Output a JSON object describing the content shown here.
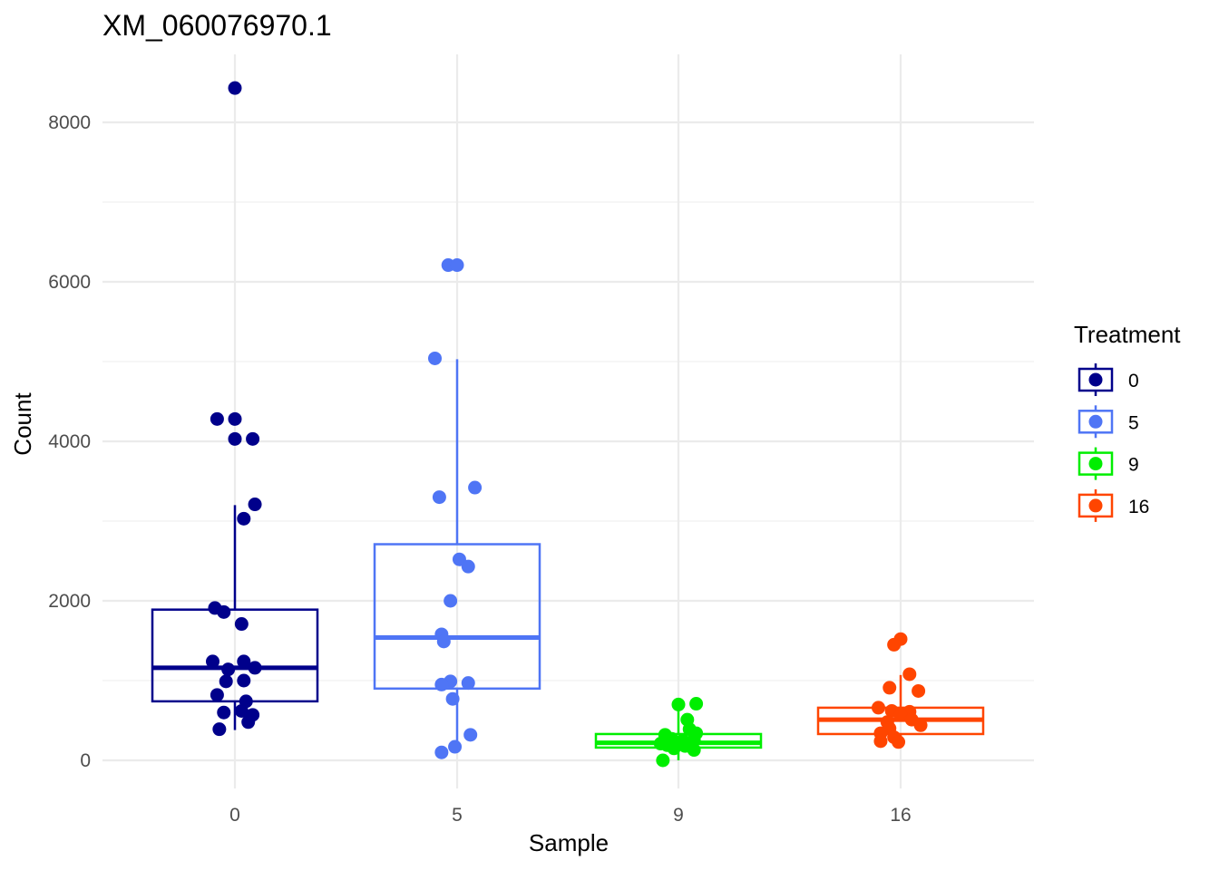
{
  "chart_data": {
    "type": "boxplot",
    "title": "XM_060076970.1",
    "xlabel": "Sample",
    "ylabel": "Count",
    "ylim": [
      -300,
      8850
    ],
    "y_ticks": [
      0,
      2000,
      4000,
      6000,
      8000
    ],
    "y_tick_labels": [
      "0",
      "2000",
      "4000",
      "6000",
      "8000"
    ],
    "grid": true,
    "categories": [
      "0",
      "5",
      "9",
      "16"
    ],
    "legend": {
      "title": "Treatment",
      "position": "right",
      "entries": [
        "0",
        "5",
        "9",
        "16"
      ]
    },
    "series": [
      {
        "name": "0",
        "color": "#00008B",
        "box": {
          "lower_whisker": 380,
          "q1": 740,
          "median": 1160,
          "q3": 1890,
          "upper_whisker": 3200
        },
        "points": [
          {
            "dx": 0.0,
            "y": 8430
          },
          {
            "dx": -0.08,
            "y": 4280
          },
          {
            "dx": 0.0,
            "y": 4280
          },
          {
            "dx": 0.0,
            "y": 4030
          },
          {
            "dx": 0.08,
            "y": 4030
          },
          {
            "dx": 0.09,
            "y": 3210
          },
          {
            "dx": 0.04,
            "y": 3030
          },
          {
            "dx": -0.09,
            "y": 1910
          },
          {
            "dx": -0.05,
            "y": 1860
          },
          {
            "dx": 0.03,
            "y": 1710
          },
          {
            "dx": -0.1,
            "y": 1240
          },
          {
            "dx": 0.04,
            "y": 1240
          },
          {
            "dx": -0.03,
            "y": 1140
          },
          {
            "dx": 0.09,
            "y": 1160
          },
          {
            "dx": -0.04,
            "y": 990
          },
          {
            "dx": 0.04,
            "y": 1000
          },
          {
            "dx": -0.08,
            "y": 820
          },
          {
            "dx": 0.05,
            "y": 740
          },
          {
            "dx": 0.03,
            "y": 620
          },
          {
            "dx": -0.05,
            "y": 600
          },
          {
            "dx": 0.08,
            "y": 570
          },
          {
            "dx": 0.06,
            "y": 480
          },
          {
            "dx": -0.07,
            "y": 390
          }
        ]
      },
      {
        "name": "5",
        "color": "#4F75F5",
        "box": {
          "lower_whisker": 100,
          "q1": 900,
          "median": 1540,
          "q3": 2710,
          "upper_whisker": 5030
        },
        "points": [
          {
            "dx": -0.04,
            "y": 6210
          },
          {
            "dx": 0.0,
            "y": 6210
          },
          {
            "dx": -0.1,
            "y": 5040
          },
          {
            "dx": 0.08,
            "y": 3420
          },
          {
            "dx": -0.08,
            "y": 3300
          },
          {
            "dx": 0.01,
            "y": 2520
          },
          {
            "dx": 0.05,
            "y": 2430
          },
          {
            "dx": -0.03,
            "y": 2000
          },
          {
            "dx": -0.07,
            "y": 1580
          },
          {
            "dx": -0.06,
            "y": 1490
          },
          {
            "dx": -0.03,
            "y": 990
          },
          {
            "dx": -0.07,
            "y": 950
          },
          {
            "dx": 0.05,
            "y": 970
          },
          {
            "dx": -0.02,
            "y": 770
          },
          {
            "dx": 0.06,
            "y": 320
          },
          {
            "dx": -0.01,
            "y": 170
          },
          {
            "dx": -0.07,
            "y": 100
          }
        ]
      },
      {
        "name": "9",
        "color": "#00EE00",
        "box": {
          "lower_whisker": 0,
          "q1": 160,
          "median": 220,
          "q3": 330,
          "upper_whisker": 700
        },
        "points": [
          {
            "dx": 0.0,
            "y": 700
          },
          {
            "dx": 0.08,
            "y": 710
          },
          {
            "dx": 0.04,
            "y": 510
          },
          {
            "dx": 0.05,
            "y": 390
          },
          {
            "dx": 0.08,
            "y": 340
          },
          {
            "dx": -0.06,
            "y": 320
          },
          {
            "dx": -0.03,
            "y": 270
          },
          {
            "dx": 0.02,
            "y": 250
          },
          {
            "dx": 0.07,
            "y": 260
          },
          {
            "dx": -0.08,
            "y": 210
          },
          {
            "dx": -0.05,
            "y": 190
          },
          {
            "dx": 0.03,
            "y": 180
          },
          {
            "dx": -0.02,
            "y": 150
          },
          {
            "dx": 0.07,
            "y": 130
          },
          {
            "dx": -0.07,
            "y": 0
          }
        ]
      },
      {
        "name": "16",
        "color": "#FF4500",
        "box": {
          "lower_whisker": 210,
          "q1": 330,
          "median": 510,
          "q3": 660,
          "upper_whisker": 1070
        },
        "points": [
          {
            "dx": 0.0,
            "y": 1520
          },
          {
            "dx": -0.03,
            "y": 1450
          },
          {
            "dx": 0.04,
            "y": 1080
          },
          {
            "dx": -0.05,
            "y": 910
          },
          {
            "dx": 0.08,
            "y": 870
          },
          {
            "dx": -0.1,
            "y": 660
          },
          {
            "dx": -0.04,
            "y": 620
          },
          {
            "dx": 0.04,
            "y": 610
          },
          {
            "dx": 0.0,
            "y": 570
          },
          {
            "dx": 0.05,
            "y": 510
          },
          {
            "dx": -0.06,
            "y": 480
          },
          {
            "dx": 0.09,
            "y": 440
          },
          {
            "dx": -0.05,
            "y": 400
          },
          {
            "dx": -0.09,
            "y": 340
          },
          {
            "dx": -0.03,
            "y": 290
          },
          {
            "dx": -0.09,
            "y": 240
          },
          {
            "dx": -0.01,
            "y": 230
          }
        ]
      }
    ]
  }
}
